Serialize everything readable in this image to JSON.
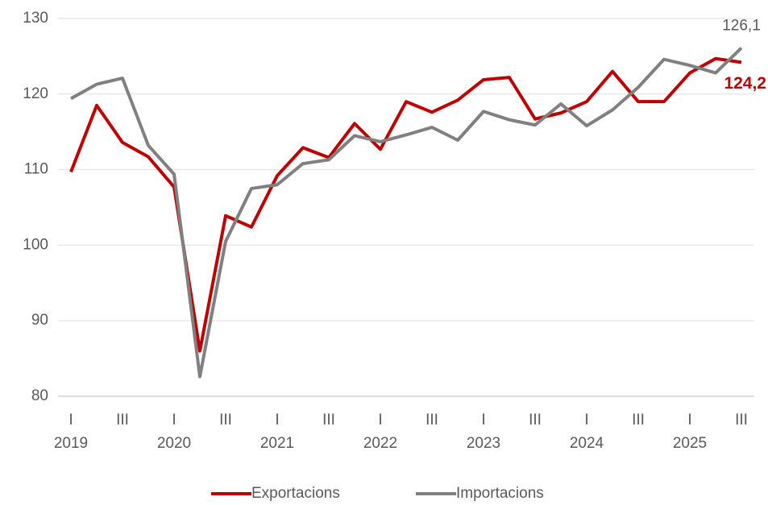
{
  "chart_data": {
    "type": "line",
    "categories": [
      "I",
      null,
      "III",
      null,
      "I",
      null,
      "III",
      null,
      "I",
      null,
      "III",
      null,
      "I",
      null,
      "III",
      null,
      "I",
      null,
      "III",
      null,
      "I",
      null,
      "III",
      null,
      "I",
      null,
      "III"
    ],
    "years": [
      "2019",
      "2020",
      "2021",
      "2022",
      "2023",
      "2024",
      "2025"
    ],
    "series": [
      {
        "name": "Exportacions",
        "color": "#c00000",
        "values": [
          109.7,
          118.5,
          113.6,
          111.7,
          107.7,
          86.0,
          103.9,
          102.4,
          109.2,
          112.9,
          111.6,
          116.1,
          112.7,
          119.0,
          117.6,
          119.2,
          121.9,
          122.2,
          116.7,
          117.5,
          119.0,
          123.0,
          119.0,
          119.0,
          122.8,
          124.7,
          124.2
        ],
        "value_labels": [
          null,
          null,
          null,
          null,
          null,
          null,
          null,
          null,
          null,
          null,
          null,
          null,
          null,
          null,
          null,
          null,
          null,
          null,
          null,
          null,
          null,
          null,
          null,
          null,
          null,
          null,
          "124,2"
        ]
      },
      {
        "name": "Importacions",
        "color": "#808080",
        "values": [
          119.4,
          121.3,
          122.1,
          113.2,
          109.4,
          82.6,
          100.5,
          107.5,
          108.0,
          110.8,
          111.3,
          114.5,
          113.7,
          114.6,
          115.6,
          113.9,
          117.7,
          116.6,
          115.9,
          118.7,
          115.8,
          117.9,
          120.9,
          124.6,
          123.8,
          122.8,
          126.1
        ],
        "value_labels": [
          null,
          null,
          null,
          null,
          null,
          null,
          null,
          null,
          null,
          null,
          null,
          null,
          null,
          null,
          null,
          null,
          null,
          null,
          null,
          null,
          null,
          null,
          null,
          null,
          null,
          null,
          "126,1"
        ]
      }
    ],
    "ylim": [
      80,
      130
    ],
    "yticks": [
      80,
      90,
      100,
      110,
      120,
      130
    ],
    "grid": true,
    "legend": "bottom"
  }
}
